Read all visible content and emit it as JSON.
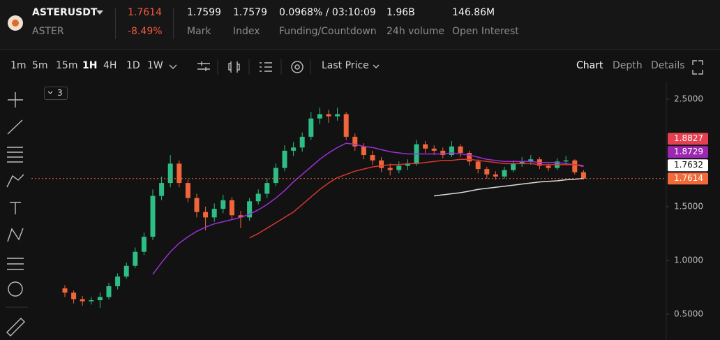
{
  "header": {
    "symbol": "ASTERUSDT",
    "base": "ASTER",
    "price": "1.7614",
    "change": "-8.49%",
    "stats": [
      {
        "value": "1.7599",
        "label": "Mark"
      },
      {
        "value": "1.7579",
        "label": "Index"
      },
      {
        "value": "0.0968% / 03:10:09",
        "label": "Funding/Countdown"
      },
      {
        "value": "1.96B",
        "label": "24h volume"
      },
      {
        "value": "146.86M",
        "label": "Open Interest"
      }
    ]
  },
  "toolbar": {
    "intervals": [
      "1m",
      "5m",
      "15m",
      "1H",
      "4H",
      "1D",
      "1W"
    ],
    "active_interval": 3,
    "price_source": "Last Price",
    "tabs": [
      "Chart",
      "Depth",
      "Details"
    ],
    "active_tab": 0,
    "indicator_count": "3"
  },
  "chart_data": {
    "type": "candlestick",
    "up_color": "#2ebd85",
    "down_color": "#f0663a",
    "open": [
      0.74,
      0.7,
      0.64,
      0.62,
      0.63,
      0.66,
      0.76,
      0.85,
      0.95,
      1.08,
      1.22,
      1.6,
      1.72,
      1.9,
      1.72,
      1.58,
      1.45,
      1.4,
      1.48,
      1.56,
      1.42,
      1.4,
      1.55,
      1.62,
      1.72,
      1.86,
      2.02,
      2.05,
      2.15,
      2.32,
      2.36,
      2.34,
      2.36,
      2.15,
      2.06,
      1.98,
      1.93,
      1.86,
      1.84,
      1.88,
      1.9,
      2.08,
      2.04,
      2.02,
      1.98,
      2.06,
      2.0,
      1.92,
      1.85,
      1.8,
      1.78,
      1.84,
      1.9,
      1.92,
      1.94,
      1.88,
      1.86,
      1.92,
      1.93,
      1.82
    ],
    "high": [
      0.77,
      0.72,
      0.67,
      0.66,
      0.7,
      0.79,
      0.88,
      0.98,
      1.12,
      1.26,
      1.66,
      1.78,
      1.98,
      1.93,
      1.75,
      1.62,
      1.5,
      1.53,
      1.61,
      1.59,
      1.46,
      1.58,
      1.66,
      1.76,
      1.9,
      2.07,
      2.1,
      2.19,
      2.38,
      2.42,
      2.4,
      2.42,
      2.38,
      2.18,
      2.09,
      2.02,
      1.96,
      1.9,
      1.92,
      1.94,
      2.12,
      2.11,
      2.07,
      2.05,
      2.11,
      2.08,
      2.02,
      1.94,
      1.87,
      1.83,
      1.87,
      1.93,
      1.96,
      1.98,
      1.96,
      1.9,
      1.95,
      1.97,
      1.94,
      1.84
    ],
    "low": [
      0.66,
      0.6,
      0.58,
      0.59,
      0.56,
      0.64,
      0.73,
      0.83,
      0.93,
      1.05,
      1.19,
      1.56,
      1.68,
      1.68,
      1.54,
      1.4,
      1.28,
      1.36,
      1.44,
      1.38,
      1.3,
      1.37,
      1.52,
      1.58,
      1.69,
      1.83,
      1.97,
      2.01,
      2.12,
      2.27,
      2.28,
      2.3,
      2.12,
      2.02,
      1.94,
      1.89,
      1.82,
      1.79,
      1.81,
      1.84,
      1.88,
      2.0,
      1.98,
      1.95,
      1.96,
      1.96,
      1.88,
      1.81,
      1.76,
      1.75,
      1.76,
      1.82,
      1.87,
      1.89,
      1.85,
      1.83,
      1.84,
      1.89,
      1.8,
      1.75
    ],
    "close": [
      0.7,
      0.64,
      0.62,
      0.63,
      0.66,
      0.76,
      0.85,
      0.95,
      1.08,
      1.22,
      1.6,
      1.72,
      1.9,
      1.72,
      1.58,
      1.45,
      1.4,
      1.48,
      1.56,
      1.42,
      1.4,
      1.55,
      1.62,
      1.72,
      1.86,
      2.02,
      2.05,
      2.15,
      2.32,
      2.36,
      2.34,
      2.36,
      2.15,
      2.06,
      1.98,
      1.93,
      1.86,
      1.84,
      1.88,
      1.9,
      2.08,
      2.04,
      2.02,
      1.98,
      2.06,
      2.0,
      1.92,
      1.85,
      1.8,
      1.78,
      1.84,
      1.9,
      1.92,
      1.94,
      1.88,
      1.86,
      1.92,
      1.93,
      1.82,
      1.7614
    ],
    "series": [
      {
        "color": "#9c2fd6",
        "values": [
          null,
          null,
          null,
          null,
          null,
          null,
          null,
          null,
          null,
          null,
          0.87,
          0.98,
          1.08,
          1.16,
          1.22,
          1.27,
          1.31,
          1.34,
          1.36,
          1.38,
          1.4,
          1.43,
          1.47,
          1.52,
          1.58,
          1.65,
          1.73,
          1.8,
          1.87,
          1.94,
          2.0,
          2.05,
          2.09,
          2.08,
          2.06,
          2.05,
          2.03,
          2.01,
          2.0,
          1.99,
          1.99,
          1.99,
          1.99,
          1.99,
          2.0,
          1.99,
          1.98,
          1.96,
          1.94,
          1.93,
          1.92,
          1.92,
          1.92,
          1.92,
          1.91,
          1.91,
          1.91,
          1.9,
          1.89,
          1.8729
        ]
      },
      {
        "color": "#d9372f",
        "values": [
          null,
          null,
          null,
          null,
          null,
          null,
          null,
          null,
          null,
          null,
          null,
          null,
          null,
          null,
          null,
          null,
          null,
          null,
          null,
          null,
          null,
          1.21,
          1.25,
          1.3,
          1.35,
          1.4,
          1.45,
          1.52,
          1.59,
          1.66,
          1.72,
          1.77,
          1.8,
          1.83,
          1.85,
          1.87,
          1.88,
          1.89,
          1.89,
          1.9,
          1.9,
          1.91,
          1.92,
          1.93,
          1.93,
          1.94,
          1.94,
          1.93,
          1.92,
          1.91,
          1.9,
          1.9,
          1.9,
          1.9,
          1.89,
          1.89,
          1.89,
          1.89,
          1.89,
          1.8827
        ]
      },
      {
        "color": "#dcdcdc",
        "values": [
          null,
          null,
          null,
          null,
          null,
          null,
          null,
          null,
          null,
          null,
          null,
          null,
          null,
          null,
          null,
          null,
          null,
          null,
          null,
          null,
          null,
          null,
          null,
          null,
          null,
          null,
          null,
          null,
          null,
          null,
          null,
          null,
          null,
          null,
          null,
          null,
          null,
          null,
          null,
          null,
          null,
          null,
          1.6,
          1.61,
          1.62,
          1.63,
          1.645,
          1.66,
          1.67,
          1.68,
          1.69,
          1.7,
          1.71,
          1.72,
          1.73,
          1.735,
          1.74,
          1.75,
          1.755,
          1.7632
        ]
      }
    ],
    "price_tags": [
      {
        "value": 1.8827,
        "color": "#e5404f",
        "text_color": "#ffffff"
      },
      {
        "value": 1.8729,
        "color": "#9c27b0",
        "text_color": "#ffffff"
      },
      {
        "value": 1.7632,
        "color": "#ffffff",
        "text_color": "#111111"
      },
      {
        "value": 1.7614,
        "color": "#f26a3a",
        "text_color": "#ffffff"
      }
    ],
    "last_price_line": true,
    "ylim": [
      0.26,
      2.675
    ],
    "yticks": [
      {
        "value": 2.5,
        "label": "2.5000"
      },
      {
        "value": 1.5,
        "label": "1.5000"
      },
      {
        "value": 1.0,
        "label": "1.0000"
      },
      {
        "value": 0.5,
        "label": "0.5000"
      }
    ]
  }
}
